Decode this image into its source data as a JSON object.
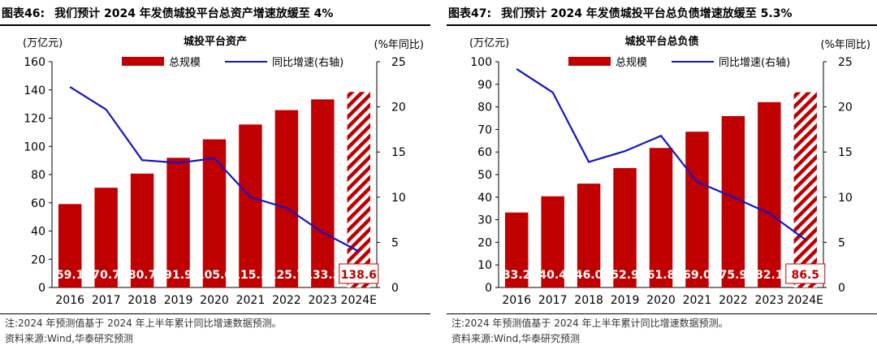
{
  "panels": [
    {
      "fig_no": "图表46:",
      "fig_title": "我们预计 2024 年发债城投平台总资产增速放缓至 4%",
      "unit_left": "(万亿元)",
      "unit_right": "(%年同比)",
      "note": "注:2024 年预测值基于 2024 年上半年累计同比增速数据预测。",
      "source": "资料来源:Wind,华泰研究预测"
    },
    {
      "fig_no": "图表47:",
      "fig_title": "我们预计 2024 年发债城投平台总负债增速放缓至 5.3%",
      "unit_left": "(万亿元)",
      "unit_right": "(%年同比)",
      "note": "注:2024 年预测值基于 2024 年上半年累计同比增速数据预测。",
      "source": "资料来源:Wind,华泰研究预测"
    }
  ],
  "chart_data": [
    {
      "type": "bar",
      "title": "城投平台资产",
      "categories": [
        "2016",
        "2017",
        "2018",
        "2019",
        "2020",
        "2021",
        "2022",
        "2023",
        "2024E"
      ],
      "series": [
        {
          "name": "总规模",
          "type": "bar",
          "axis": "left",
          "values": [
            59.1,
            70.7,
            80.7,
            91.9,
            105.0,
            115.5,
            125.7,
            133.3,
            138.6
          ],
          "labels": [
            "59.1",
            "70.7",
            "80.7",
            "91.9",
            "105.0",
            "115.5",
            "125.7",
            "133.3",
            "138.6"
          ],
          "color": "#C00000"
        },
        {
          "name": "同比增速(右轴)",
          "type": "line",
          "axis": "right",
          "values": [
            22.2,
            19.7,
            14.1,
            13.8,
            14.3,
            10.0,
            8.8,
            6.1,
            4.0
          ],
          "color": "#1414C8"
        }
      ],
      "forecast_index": 8,
      "ylim_left": [
        0,
        160
      ],
      "yticks_left": [
        0,
        20,
        40,
        60,
        80,
        100,
        120,
        140,
        160
      ],
      "ylim_right": [
        0,
        25
      ],
      "yticks_right": [
        0,
        5,
        10,
        15,
        20,
        25
      ],
      "legend_position": "top"
    },
    {
      "type": "bar",
      "title": "城投平台总负债",
      "categories": [
        "2016",
        "2017",
        "2018",
        "2019",
        "2020",
        "2021",
        "2022",
        "2023",
        "2024E"
      ],
      "series": [
        {
          "name": "总规模",
          "type": "bar",
          "axis": "left",
          "values": [
            33.2,
            40.4,
            46.0,
            52.9,
            61.8,
            69.0,
            75.9,
            82.1,
            86.5
          ],
          "labels": [
            "33.2",
            "40.4",
            "46.0",
            "52.9",
            "61.8",
            "69.0",
            "75.9",
            "82.1",
            "86.5"
          ],
          "color": "#C00000"
        },
        {
          "name": "同比增速(右轴)",
          "type": "line",
          "axis": "right",
          "values": [
            24.2,
            21.6,
            13.9,
            15.1,
            16.8,
            11.7,
            10.0,
            8.2,
            5.3
          ],
          "color": "#1414C8"
        }
      ],
      "forecast_index": 8,
      "ylim_left": [
        0,
        100
      ],
      "yticks_left": [
        0,
        10,
        20,
        30,
        40,
        50,
        60,
        70,
        80,
        90,
        100
      ],
      "ylim_right": [
        0,
        25
      ],
      "yticks_right": [
        0,
        5,
        10,
        15,
        20,
        25
      ],
      "legend_position": "top"
    }
  ]
}
